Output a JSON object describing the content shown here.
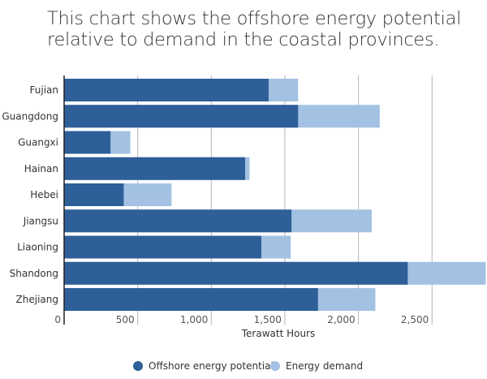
{
  "chart_data": {
    "type": "bar",
    "orientation": "horizontal",
    "title": "This chart shows the offshore energy potential relative to demand in the coastal provinces.",
    "xlabel": "Terawatt Hours",
    "ylabel": "",
    "xlim": [
      0,
      2863
    ],
    "xticks": [
      0,
      500,
      1000,
      1500,
      2000,
      2500
    ],
    "xtick_labels": [
      "0",
      "500",
      "1,000",
      "1,500",
      "2,000",
      "2,500"
    ],
    "grid": true,
    "legend_position": "bottom",
    "categories": [
      "Fujian",
      "Guangdong",
      "Guangxi",
      "Hainan",
      "Hebei",
      "Jiangsu",
      "Liaoning",
      "Shandong",
      "Zhejiang"
    ],
    "series": [
      {
        "name": "Offshore energy potential",
        "color": "#2e5f98",
        "values": [
          1390,
          1590,
          315,
          1230,
          405,
          1545,
          1340,
          2335,
          1725
        ]
      },
      {
        "name": "Energy demand",
        "color": "#a3c1e2",
        "values": [
          1590,
          2145,
          450,
          1260,
          730,
          2090,
          1540,
          2865,
          2115
        ]
      }
    ]
  }
}
